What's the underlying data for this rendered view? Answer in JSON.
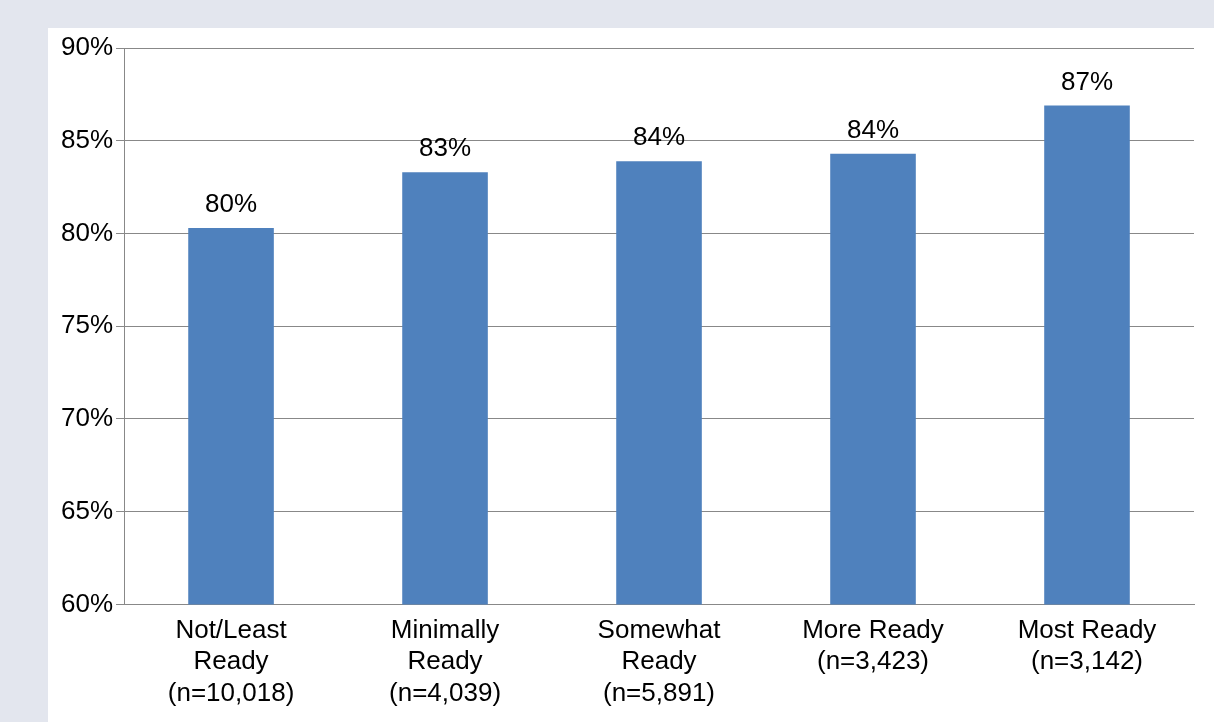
{
  "chart_data": {
    "type": "bar",
    "categories": [
      "Not/Least\nReady\n(n=10,018)",
      "Minimally\nReady\n(n=4,039)",
      "Somewhat\nReady\n(n=5,891)",
      "More Ready\n(n=3,423)",
      "Most Ready\n(n=3,142)"
    ],
    "values": [
      80.3,
      83.3,
      83.9,
      84.3,
      86.9
    ],
    "color": "#4f81bd",
    "value_labels": [
      "80%",
      "83%",
      "84%",
      "84%",
      "87%"
    ],
    "ylim": [
      60,
      90
    ],
    "yticks": [
      {
        "value": 60,
        "label": "60%"
      },
      {
        "value": 65,
        "label": "65%"
      },
      {
        "value": 70,
        "label": "70%"
      },
      {
        "value": 75,
        "label": "75%"
      },
      {
        "value": 80,
        "label": "80%"
      },
      {
        "value": 85,
        "label": "85%"
      },
      {
        "value": 90,
        "label": "90%"
      }
    ],
    "grid": "y",
    "legend": false
  }
}
